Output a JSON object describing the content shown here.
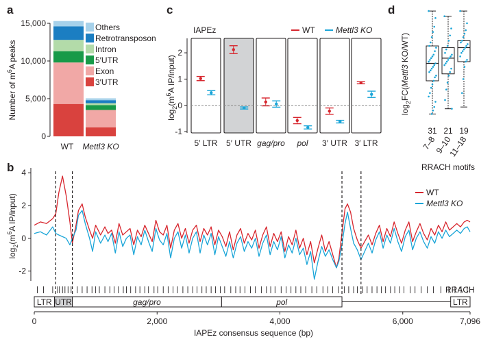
{
  "colors": {
    "wt": "#d7262e",
    "ko": "#1aa5d8",
    "others": "#a6d1ea",
    "retrotransposon": "#1b7ec2",
    "intron": "#b3dba9",
    "utr5": "#179a48",
    "exon": "#f1a8a6",
    "utr3": "#d9423e",
    "shade": "#d2d3d5",
    "ink": "#231f20",
    "dash": "#8c8c8c"
  },
  "panels": {
    "a": "a",
    "b": "b",
    "c": "c",
    "d": "d"
  },
  "chart_data": [
    {
      "id": "a",
      "type": "bar",
      "stacked": true,
      "ylabel_prefix": "Number of m",
      "ylabel_sup": "6",
      "ylabel_suffix": "A peaks",
      "ylim": [
        0,
        15000
      ],
      "yticks": [
        "0",
        "5,000",
        "10,000",
        "15,000"
      ],
      "ytick_values": [
        0,
        5000,
        10000,
        15000
      ],
      "categories": [
        "WT",
        "Mettl3 KO"
      ],
      "category_italic": [
        false,
        true
      ],
      "legend": [
        "Others",
        "Retrotransposon",
        "Intron",
        "5′UTR",
        "Exon",
        "3′UTR"
      ],
      "series": [
        {
          "name": "3′UTR",
          "color_key": "utr3",
          "values": [
            4300,
            1200
          ]
        },
        {
          "name": "Exon",
          "color_key": "exon",
          "values": [
            5500,
            2300
          ]
        },
        {
          "name": "5′UTR",
          "color_key": "utr5",
          "values": [
            1500,
            650
          ]
        },
        {
          "name": "Intron",
          "color_key": "intron",
          "values": [
            1500,
            250
          ]
        },
        {
          "name": "Retrotransposon",
          "color_key": "retrotransposon",
          "values": [
            1800,
            400
          ]
        },
        {
          "name": "Others",
          "color_key": "others",
          "values": [
            700,
            250
          ]
        }
      ]
    },
    {
      "id": "c",
      "type": "scatter",
      "title": "IAPEz",
      "ylabel_pre": "log",
      "ylabel_sub": "2",
      "ylabel_mid": "(m",
      "ylabel_sup": "6",
      "ylabel_post": "A IP/input)",
      "ylim": [
        -1.05,
        2.55
      ],
      "yticks": [
        "-1",
        "0",
        "1",
        "2"
      ],
      "ytick_values": [
        -1,
        0,
        1,
        2
      ],
      "legend": [
        "WT",
        "Mettl3 KO"
      ],
      "categories": [
        "5′ LTR",
        "5′ UTR",
        "gag/pro",
        "pol",
        "3′ UTR",
        "3′ LTR"
      ],
      "category_italic": [
        false,
        false,
        true,
        true,
        false,
        false
      ],
      "shaded": [
        false,
        true,
        false,
        false,
        false,
        false
      ],
      "series": [
        {
          "name": "WT",
          "values": [
            1.02,
            2.12,
            0.13,
            -0.58,
            -0.22,
            0.86
          ],
          "err": [
            0.08,
            0.15,
            0.15,
            0.12,
            0.12,
            0.04
          ]
        },
        {
          "name": "Mettl3 KO",
          "values": [
            0.48,
            -0.1,
            0.05,
            -0.84,
            -0.62,
            0.42
          ],
          "err": [
            0.08,
            0.04,
            0.12,
            0.06,
            0.05,
            0.12
          ]
        }
      ]
    },
    {
      "id": "d",
      "type": "box",
      "ylabel_pre": "log",
      "ylabel_sub": "2",
      "ylabel_fc": "FC(",
      "ylabel_gene": "Mettl3",
      "ylabel_post": " KO/WT)",
      "ylim": [
        -2.9,
        3.5
      ],
      "xlabel": "RRACH motifs",
      "categories": [
        "7–8",
        "9–10",
        "11–18"
      ],
      "counts": [
        "31",
        "21",
        "19"
      ],
      "boxes": [
        {
          "whisker_low": -2.6,
          "q1": -0.7,
          "median": 0.3,
          "q3": 1.3,
          "whisker_high": 3.3,
          "points": [
            3.3,
            2.9,
            2.4,
            2.1,
            1.8,
            1.5,
            1.3,
            1.2,
            1.0,
            0.8,
            0.7,
            0.6,
            0.5,
            0.4,
            0.3,
            0.2,
            0.1,
            0.0,
            -0.1,
            -0.2,
            -0.4,
            -0.5,
            -0.7,
            -0.9,
            -1.1,
            -1.4,
            -1.6,
            -1.9,
            -2.2,
            -2.4,
            -2.6
          ]
        },
        {
          "whisker_low": -2.3,
          "q1": -0.3,
          "median": 0.6,
          "q3": 1.2,
          "whisker_high": 3.0,
          "points": [
            3.0,
            2.3,
            1.9,
            1.6,
            1.3,
            1.1,
            0.9,
            0.8,
            0.7,
            0.6,
            0.5,
            0.4,
            0.3,
            0.2,
            0.0,
            -0.2,
            -0.4,
            -0.8,
            -1.2,
            -1.8,
            -2.3
          ]
        },
        {
          "whisker_low": -2.2,
          "q1": 0.4,
          "median": 1.2,
          "q3": 1.6,
          "whisker_high": 3.3,
          "points": [
            3.3,
            2.6,
            2.2,
            2.0,
            1.8,
            1.6,
            1.5,
            1.4,
            1.3,
            1.2,
            1.1,
            1.0,
            0.9,
            0.7,
            0.5,
            0.4,
            0.1,
            -0.6,
            -1.4
          ]
        }
      ]
    },
    {
      "id": "b",
      "type": "line",
      "ylabel_pre": "log",
      "ylabel_sub": "2",
      "ylabel_mid": "(m",
      "ylabel_sup": "6",
      "ylabel_post": "A IP/input)",
      "xlabel": "IAPEz consensus sequence (bp)",
      "xlim": [
        0,
        7096
      ],
      "ylim": [
        -2.6,
        4.3
      ],
      "xticks": [
        "0",
        "2,000",
        "4,000",
        "6,000",
        "7,096"
      ],
      "xtick_values": [
        0,
        2000,
        4000,
        6000,
        7096
      ],
      "yticks": [
        "-2",
        "0",
        "2",
        "4"
      ],
      "ytick_values": [
        -2,
        0,
        2,
        4
      ],
      "legend": [
        "WT",
        "Mettl3 KO"
      ],
      "rrach_label": "RRACH",
      "dashed_lines": [
        350,
        620,
        5010,
        5320
      ],
      "genome_labels": [
        "LTR",
        "UTR",
        "gag/pro",
        "pol",
        "LTR"
      ],
      "genome_spans": [
        [
          0,
          330
        ],
        [
          330,
          620
        ],
        [
          620,
          3050
        ],
        [
          3050,
          5010
        ],
        [
          6780,
          7096
        ]
      ],
      "rrach_positions": [
        50,
        150,
        300,
        380,
        410,
        460,
        500,
        550,
        600,
        700,
        780,
        860,
        940,
        1000,
        1060,
        1150,
        1230,
        1300,
        1370,
        1450,
        1500,
        1570,
        1650,
        1720,
        1800,
        1860,
        1950,
        2010,
        2100,
        2180,
        2260,
        2330,
        2420,
        2500,
        2580,
        2650,
        2730,
        2800,
        2880,
        2950,
        3030,
        3100,
        3200,
        3280,
        3350,
        3430,
        3520,
        3600,
        3700,
        3780,
        3850,
        3920,
        4020,
        4100,
        4180,
        4260,
        4340,
        4420,
        4520,
        4600,
        4700,
        4780,
        4860,
        4950,
        5050,
        5120,
        5200,
        5260,
        5350,
        5420,
        5500,
        5580,
        5650,
        5720,
        5800,
        5870,
        5950,
        6020,
        6120,
        6200,
        6300,
        6400,
        6500,
        6620,
        6750,
        6850,
        6950,
        7050
      ],
      "series": [
        {
          "name": "WT",
          "x": [
            0,
            100,
            200,
            300,
            350,
            400,
            460,
            520,
            580,
            620,
            680,
            720,
            780,
            830,
            900,
            950,
            1000,
            1080,
            1150,
            1200,
            1260,
            1320,
            1380,
            1440,
            1500,
            1560,
            1620,
            1680,
            1740,
            1800,
            1860,
            1920,
            1980,
            2040,
            2100,
            2160,
            2220,
            2280,
            2340,
            2400,
            2460,
            2520,
            2580,
            2640,
            2700,
            2760,
            2820,
            2880,
            2940,
            3000,
            3060,
            3120,
            3180,
            3240,
            3300,
            3360,
            3420,
            3480,
            3540,
            3600,
            3660,
            3720,
            3780,
            3840,
            3900,
            3960,
            4020,
            4080,
            4140,
            4200,
            4260,
            4320,
            4380,
            4440,
            4500,
            4560,
            4620,
            4680,
            4740,
            4800,
            4860,
            4920,
            4960,
            5010,
            5060,
            5100,
            5150,
            5200,
            5260,
            5320,
            5380,
            5440,
            5500,
            5560,
            5620,
            5680,
            5740,
            5800,
            5860,
            5920,
            5980,
            6040,
            6100,
            6160,
            6220,
            6280,
            6340,
            6400,
            6460,
            6520,
            6580,
            6640,
            6700,
            6760,
            6820,
            6880,
            6940,
            7000,
            7050,
            7096
          ],
          "y": [
            0.8,
            1.0,
            0.9,
            1.2,
            1.5,
            2.8,
            3.8,
            2.6,
            1.0,
            -0.3,
            0.8,
            1.7,
            2.1,
            1.3,
            0.5,
            0.0,
            0.8,
            0.2,
            0.7,
            0.3,
            0.5,
            -0.3,
            0.9,
            0.2,
            0.4,
            0.6,
            -0.4,
            0.5,
            0.1,
            0.8,
            0.3,
            -0.2,
            1.1,
            0.4,
            0.2,
            0.8,
            -0.6,
            0.5,
            0.9,
            0.0,
            0.6,
            -0.3,
            0.5,
            0.8,
            -0.2,
            0.6,
            0.2,
            0.7,
            -0.4,
            0.5,
            0.1,
            -0.5,
            0.4,
            -0.7,
            0.2,
            0.6,
            -0.3,
            0.3,
            -0.1,
            0.5,
            -0.6,
            0.2,
            0.7,
            -0.5,
            0.3,
            -0.2,
            0.4,
            -0.8,
            0.1,
            -0.4,
            0.5,
            -0.6,
            0.0,
            -1.0,
            -0.2,
            -1.5,
            -0.6,
            0.2,
            -0.8,
            -0.2,
            -1.0,
            -1.8,
            -1.2,
            0.3,
            1.8,
            2.1,
            1.6,
            0.6,
            -0.1,
            -0.6,
            -0.2,
            0.2,
            -0.4,
            0.3,
            0.8,
            -0.2,
            0.6,
            0.1,
            1.0,
            0.3,
            -0.3,
            0.5,
            1.0,
            -0.2,
            0.4,
            0.9,
            0.3,
            -0.1,
            0.6,
            0.2,
            0.8,
            0.4,
            1.0,
            0.5,
            0.7,
            0.9,
            0.7,
            1.0,
            1.1,
            1.0
          ]
        },
        {
          "name": "Mettl3 KO",
          "x": [
            0,
            100,
            200,
            300,
            350,
            400,
            460,
            520,
            580,
            620,
            680,
            720,
            780,
            830,
            900,
            950,
            1000,
            1080,
            1150,
            1200,
            1260,
            1320,
            1380,
            1440,
            1500,
            1560,
            1620,
            1680,
            1740,
            1800,
            1860,
            1920,
            1980,
            2040,
            2100,
            2160,
            2220,
            2280,
            2340,
            2400,
            2460,
            2520,
            2580,
            2640,
            2700,
            2760,
            2820,
            2880,
            2940,
            3000,
            3060,
            3120,
            3180,
            3240,
            3300,
            3360,
            3420,
            3480,
            3540,
            3600,
            3660,
            3720,
            3780,
            3840,
            3900,
            3960,
            4020,
            4080,
            4140,
            4200,
            4260,
            4320,
            4380,
            4440,
            4500,
            4560,
            4620,
            4680,
            4740,
            4800,
            4860,
            4920,
            4960,
            5010,
            5060,
            5100,
            5150,
            5200,
            5260,
            5320,
            5380,
            5440,
            5500,
            5560,
            5620,
            5680,
            5740,
            5800,
            5860,
            5920,
            5980,
            6040,
            6100,
            6160,
            6220,
            6280,
            6340,
            6400,
            6460,
            6520,
            6580,
            6640,
            6700,
            6760,
            6820,
            6880,
            6940,
            7000,
            7050,
            7096
          ],
          "y": [
            0.3,
            0.4,
            0.2,
            0.7,
            0.3,
            0.2,
            0.1,
            0.0,
            -0.4,
            0.0,
            0.5,
            1.4,
            1.7,
            0.9,
            0.0,
            -0.8,
            0.4,
            -0.3,
            0.2,
            -0.2,
            0.3,
            -0.9,
            0.4,
            -0.5,
            0.0,
            0.2,
            -1.0,
            0.1,
            -0.4,
            0.5,
            -0.2,
            -0.8,
            0.6,
            -0.1,
            -0.4,
            0.3,
            -1.2,
            0.0,
            0.4,
            -0.6,
            0.2,
            -0.9,
            0.0,
            0.4,
            -0.9,
            0.2,
            -0.4,
            0.3,
            -1.0,
            0.1,
            -0.5,
            -1.1,
            -0.2,
            -1.2,
            -0.3,
            0.1,
            -0.8,
            -0.2,
            -0.6,
            0.0,
            -1.1,
            -0.3,
            0.2,
            -1.0,
            -0.2,
            -0.7,
            0.1,
            -1.2,
            -0.4,
            -0.9,
            0.0,
            -1.0,
            -0.6,
            -1.6,
            -0.8,
            -2.5,
            -1.4,
            -0.5,
            -1.1,
            -0.7,
            -1.3,
            -1.8,
            -1.4,
            -0.4,
            0.9,
            1.6,
            0.6,
            -0.3,
            -0.7,
            -1.3,
            -0.8,
            -0.3,
            -0.9,
            -0.1,
            0.4,
            -0.6,
            0.2,
            -0.3,
            0.6,
            -0.2,
            -0.8,
            0.1,
            0.5,
            -0.7,
            0.0,
            0.4,
            -0.2,
            -0.6,
            0.1,
            -0.3,
            0.4,
            0.0,
            0.5,
            0.1,
            0.3,
            0.5,
            0.3,
            0.6,
            0.7,
            0.4
          ]
        }
      ]
    }
  ]
}
